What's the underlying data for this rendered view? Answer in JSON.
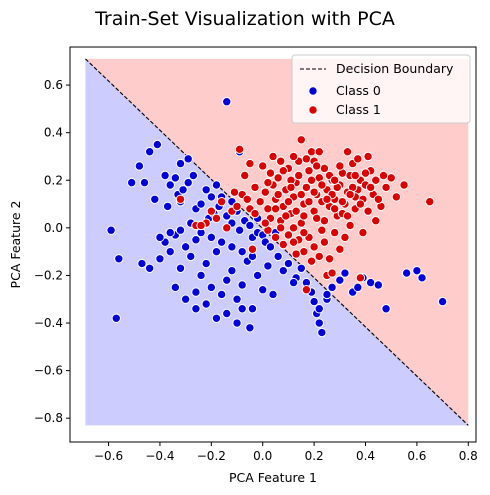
{
  "chart_data": {
    "type": "scatter",
    "title": "Train-Set Visualization with PCA",
    "xlabel": "PCA Feature 1",
    "ylabel": "PCA Feature 2",
    "xlim": [
      -0.75,
      0.83
    ],
    "ylim": [
      -0.9,
      0.76
    ],
    "xticks": [
      -0.6,
      -0.4,
      -0.2,
      0.0,
      0.2,
      0.4,
      0.6,
      0.8
    ],
    "yticks": [
      -0.8,
      -0.6,
      -0.4,
      -0.2,
      0.0,
      0.2,
      0.4,
      0.6
    ],
    "xtick_labels": [
      "−0.6",
      "−0.4",
      "−0.2",
      "0.0",
      "0.2",
      "0.4",
      "0.6",
      "0.8"
    ],
    "ytick_labels": [
      "−0.8",
      "−0.6",
      "−0.4",
      "−0.2",
      "0.0",
      "0.2",
      "0.4",
      "0.6"
    ],
    "grid": false,
    "legend_position": "top-right",
    "region_extent": {
      "x": [
        -0.69,
        0.8
      ],
      "y": [
        -0.83,
        0.71
      ]
    },
    "decision_boundary": {
      "label": "Decision Boundary",
      "x": [
        -0.69,
        0.8
      ],
      "y": [
        0.71,
        -0.83
      ],
      "color": "#000000",
      "style": "dashed"
    },
    "regions": [
      {
        "name": "class-0-region",
        "color": "#ccccff"
      },
      {
        "name": "class-1-region",
        "color": "#ffcccc"
      }
    ],
    "series": [
      {
        "name": "Class 0",
        "color": "#0000dd",
        "points": [
          [
            -0.59,
            -0.01
          ],
          [
            -0.56,
            -0.13
          ],
          [
            -0.57,
            -0.38
          ],
          [
            -0.51,
            0.19
          ],
          [
            -0.48,
            0.26
          ],
          [
            -0.46,
            0.19
          ],
          [
            -0.44,
            0.32
          ],
          [
            -0.41,
            0.35
          ],
          [
            -0.38,
            0.22
          ],
          [
            -0.37,
            0.09
          ],
          [
            -0.36,
            0.18
          ],
          [
            -0.34,
            0.21
          ],
          [
            -0.33,
            0.14
          ],
          [
            -0.32,
            0.11
          ],
          [
            -0.31,
            0.16
          ],
          [
            -0.29,
            0.19
          ],
          [
            -0.27,
            0.22
          ],
          [
            -0.26,
            0.08
          ],
          [
            -0.24,
            0.1
          ],
          [
            -0.22,
            0.16
          ],
          [
            -0.21,
            0.04
          ],
          [
            -0.19,
            0.06
          ],
          [
            -0.17,
            0.09
          ],
          [
            -0.16,
            0.13
          ],
          [
            -0.14,
            0.05
          ],
          [
            -0.12,
            0.02
          ],
          [
            -0.1,
            0.07
          ],
          [
            -0.09,
            -0.01
          ],
          [
            -0.07,
            0.03
          ],
          [
            -0.05,
            0.01
          ],
          [
            -0.04,
            -0.04
          ],
          [
            -0.02,
            -0.02
          ],
          [
            0.0,
            -0.03
          ],
          [
            0.01,
            -0.06
          ],
          [
            0.03,
            -0.08
          ],
          [
            0.06,
            -0.12
          ],
          [
            0.08,
            -0.18
          ],
          [
            0.1,
            -0.15
          ],
          [
            0.13,
            -0.21
          ],
          [
            0.15,
            -0.17
          ],
          [
            0.17,
            -0.23
          ],
          [
            0.19,
            -0.27
          ],
          [
            0.2,
            -0.31
          ],
          [
            0.21,
            -0.36
          ],
          [
            0.22,
            -0.4
          ],
          [
            0.23,
            -0.44
          ],
          [
            0.25,
            -0.3
          ],
          [
            0.27,
            -0.25
          ],
          [
            0.3,
            -0.22
          ],
          [
            0.32,
            -0.19
          ],
          [
            0.35,
            -0.27
          ],
          [
            0.37,
            -0.25
          ],
          [
            0.39,
            -0.21
          ],
          [
            0.42,
            -0.23
          ],
          [
            0.45,
            -0.24
          ],
          [
            0.48,
            -0.34
          ],
          [
            0.56,
            -0.19
          ],
          [
            0.6,
            -0.18
          ],
          [
            0.62,
            -0.21
          ],
          [
            0.7,
            -0.31
          ],
          [
            -0.44,
            -0.17
          ],
          [
            -0.4,
            -0.13
          ],
          [
            -0.38,
            -0.06
          ],
          [
            -0.36,
            -0.1
          ],
          [
            -0.34,
            -0.03
          ],
          [
            -0.32,
            -0.17
          ],
          [
            -0.3,
            -0.08
          ],
          [
            -0.28,
            -0.12
          ],
          [
            -0.26,
            -0.05
          ],
          [
            -0.24,
            -0.2
          ],
          [
            -0.22,
            -0.15
          ],
          [
            -0.2,
            -0.25
          ],
          [
            -0.18,
            -0.1
          ],
          [
            -0.16,
            -0.28
          ],
          [
            -0.14,
            -0.22
          ],
          [
            -0.12,
            -0.18
          ],
          [
            -0.1,
            -0.3
          ],
          [
            -0.08,
            -0.24
          ],
          [
            -0.06,
            -0.14
          ],
          [
            -0.04,
            -0.34
          ],
          [
            -0.02,
            -0.2
          ],
          [
            0.0,
            -0.26
          ],
          [
            0.02,
            -0.16
          ],
          [
            0.04,
            -0.28
          ],
          [
            -0.3,
            -0.3
          ],
          [
            -0.26,
            -0.34
          ],
          [
            -0.22,
            -0.32
          ],
          [
            -0.18,
            -0.38
          ],
          [
            -0.14,
            -0.36
          ],
          [
            -0.1,
            -0.4
          ],
          [
            -0.08,
            -0.34
          ],
          [
            -0.05,
            -0.42
          ],
          [
            -0.2,
            -0.04
          ],
          [
            -0.24,
            -0.02
          ],
          [
            -0.28,
            0.02
          ],
          [
            -0.32,
            -0.01
          ],
          [
            -0.36,
            -0.02
          ],
          [
            -0.4,
            -0.04
          ],
          [
            -0.16,
            -0.06
          ],
          [
            -0.12,
            -0.08
          ],
          [
            -0.08,
            -0.1
          ],
          [
            -0.04,
            -0.12
          ],
          [
            -0.09,
            0.32
          ],
          [
            -0.14,
            0.53
          ],
          [
            -0.32,
            0.27
          ],
          [
            -0.2,
            0.13
          ],
          [
            -0.02,
            0.04
          ],
          [
            0.05,
            -0.02
          ],
          [
            0.22,
            -0.34
          ],
          [
            0.25,
            -0.28
          ],
          [
            0.12,
            -0.23
          ],
          [
            -0.26,
            -0.27
          ],
          [
            -0.34,
            -0.25
          ],
          [
            -0.47,
            -0.15
          ],
          [
            -0.42,
            0.12
          ],
          [
            -0.29,
            0.29
          ],
          [
            -0.18,
            0.18
          ],
          [
            -0.12,
            0.11
          ]
        ]
      },
      {
        "name": "Class 1",
        "color": "#dd0000",
        "points": [
          [
            -0.22,
            0.02
          ],
          [
            -0.18,
            0.04
          ],
          [
            -0.16,
            0.11
          ],
          [
            -0.12,
            0.07
          ],
          [
            -0.1,
            0.09
          ],
          [
            -0.08,
            0.14
          ],
          [
            -0.06,
            0.12
          ],
          [
            -0.05,
            0.08
          ],
          [
            -0.03,
            0.06
          ],
          [
            -0.01,
            0.11
          ],
          [
            0.01,
            0.15
          ],
          [
            0.02,
            0.08
          ],
          [
            0.03,
            0.04
          ],
          [
            0.04,
            0.18
          ],
          [
            0.05,
            0.12
          ],
          [
            0.06,
            0.21
          ],
          [
            0.07,
            0.03
          ],
          [
            0.08,
            0.09
          ],
          [
            0.09,
            0.16
          ],
          [
            0.1,
            0.25
          ],
          [
            0.11,
            0.06
          ],
          [
            0.12,
            0.13
          ],
          [
            0.13,
            0.19
          ],
          [
            0.14,
            0.28
          ],
          [
            0.15,
            0.02
          ],
          [
            0.16,
            0.1
          ],
          [
            0.17,
            0.17
          ],
          [
            0.18,
            0.24
          ],
          [
            0.19,
            0.32
          ],
          [
            0.2,
            0.07
          ],
          [
            0.21,
            0.14
          ],
          [
            0.22,
            0.21
          ],
          [
            0.23,
            0.11
          ],
          [
            0.24,
            0.03
          ],
          [
            0.25,
            0.16
          ],
          [
            0.26,
            0.09
          ],
          [
            0.27,
            0.2
          ],
          [
            0.28,
            0.12
          ],
          [
            0.29,
            0.05
          ],
          [
            0.3,
            0.18
          ],
          [
            0.31,
            0.23
          ],
          [
            0.32,
            0.1
          ],
          [
            0.33,
            0.15
          ],
          [
            0.34,
            0.22
          ],
          [
            0.35,
            0.27
          ],
          [
            0.36,
            0.08
          ],
          [
            0.37,
            0.16
          ],
          [
            0.38,
            0.2
          ],
          [
            0.39,
            0.12
          ],
          [
            0.4,
            0.18
          ],
          [
            0.41,
            0.07
          ],
          [
            0.42,
            0.24
          ],
          [
            0.43,
            0.14
          ],
          [
            0.44,
            0.2
          ],
          [
            0.46,
            0.09
          ],
          [
            0.48,
            0.17
          ],
          [
            0.5,
            0.21
          ],
          [
            0.52,
            0.13
          ],
          [
            0.55,
            0.18
          ],
          [
            0.65,
            0.11
          ],
          [
            -0.09,
            0.33
          ],
          [
            -0.05,
            0.27
          ],
          [
            0.0,
            0.26
          ],
          [
            0.04,
            0.3
          ],
          [
            0.07,
            0.28
          ],
          [
            0.12,
            0.3
          ],
          [
            0.15,
            0.37
          ],
          [
            0.17,
            0.29
          ],
          [
            0.22,
            0.32
          ],
          [
            0.33,
            0.32
          ],
          [
            0.37,
            0.29
          ],
          [
            0.41,
            0.3
          ],
          [
            0.02,
            -0.01
          ],
          [
            0.05,
            -0.04
          ],
          [
            0.08,
            -0.07
          ],
          [
            0.1,
            -0.03
          ],
          [
            0.12,
            0.0
          ],
          [
            0.14,
            -0.05
          ],
          [
            0.16,
            -0.1
          ],
          [
            0.18,
            -0.04
          ],
          [
            0.2,
            -0.08
          ],
          [
            0.22,
            -0.12
          ],
          [
            0.24,
            -0.06
          ],
          [
            0.26,
            -0.13
          ],
          [
            0.28,
            -0.02
          ],
          [
            0.3,
            -0.09
          ],
          [
            0.32,
            -0.04
          ],
          [
            0.34,
            0.01
          ],
          [
            0.25,
            -0.2
          ],
          [
            0.19,
            -0.14
          ],
          [
            -0.14,
            0.0
          ],
          [
            -0.2,
            0.07
          ],
          [
            -0.26,
            0.01
          ],
          [
            -0.07,
            0.22
          ],
          [
            0.03,
            0.23
          ],
          [
            0.09,
            0.05
          ],
          [
            0.13,
            0.07
          ],
          [
            0.21,
            0.04
          ],
          [
            0.27,
            0.14
          ],
          [
            0.31,
            0.06
          ],
          [
            0.36,
            0.13
          ],
          [
            0.4,
            0.23
          ],
          [
            -0.11,
            0.15
          ],
          [
            0.06,
            0.14
          ],
          [
            0.11,
            0.2
          ],
          [
            0.18,
            0.11
          ],
          [
            0.24,
            0.25
          ],
          [
            0.29,
            0.17
          ],
          [
            0.35,
            0.17
          ],
          [
            0.38,
            0.1
          ],
          [
            0.45,
            0.12
          ],
          [
            0.08,
            0.24
          ],
          [
            0.02,
            0.19
          ],
          [
            -0.03,
            0.17
          ],
          [
            0.15,
            0.14
          ],
          [
            0.23,
            0.18
          ],
          [
            0.28,
            0.08
          ],
          [
            0.33,
            0.05
          ],
          [
            0.39,
            -0.02
          ],
          [
            0.44,
            0.03
          ],
          [
            0.2,
            0.28
          ],
          [
            0.26,
            0.22
          ],
          [
            0.16,
            -0.02
          ],
          [
            0.1,
            0.11
          ],
          [
            0.05,
            0.08
          ],
          [
            0.38,
            -0.21
          ],
          [
            0.17,
            -0.26
          ],
          [
            0.27,
            -0.19
          ],
          [
            0.13,
            -0.11
          ],
          [
            0.23,
            -0.01
          ],
          [
            -0.04,
            -0.09
          ],
          [
            0.01,
            0.02
          ],
          [
            0.19,
            0.2
          ],
          [
            0.31,
            0.11
          ],
          [
            0.36,
            0.22
          ],
          [
            0.42,
            0.17
          ],
          [
            0.47,
            0.22
          ],
          [
            0.3,
            0.26
          ],
          [
            0.11,
            0.17
          ],
          [
            0.14,
            0.22
          ],
          [
            0.21,
            0.26
          ],
          [
            0.25,
            0.12
          ],
          [
            0.34,
            0.14
          ],
          [
            0.28,
            0.2
          ],
          [
            -0.32,
            0.12
          ],
          [
            -0.24,
            0.01
          ],
          [
            0.07,
            0.0
          ],
          [
            0.12,
            -0.06
          ],
          [
            0.16,
            0.05
          ],
          [
            0.2,
            0.15
          ]
        ]
      }
    ]
  }
}
